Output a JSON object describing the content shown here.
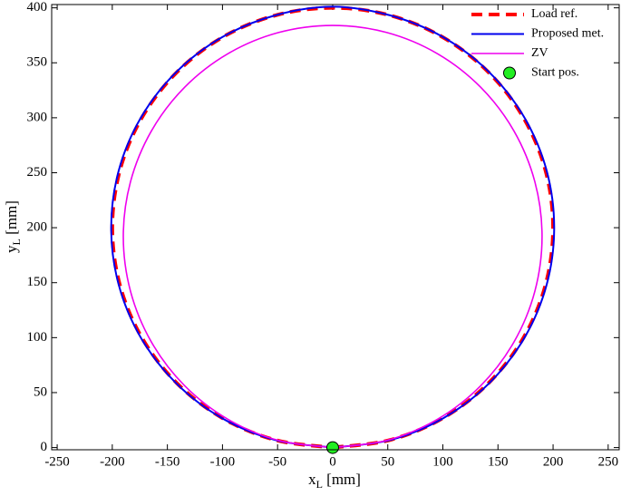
{
  "chart_data": {
    "type": "line",
    "x_label": {
      "base": "x",
      "subscript": "L",
      "unit": " [mm]"
    },
    "y_label": {
      "base": "y",
      "subscript": "L",
      "unit": " [mm]"
    },
    "xlim": [
      -255,
      260
    ],
    "ylim": [
      -2,
      403
    ],
    "xticks": [
      -250,
      -200,
      -150,
      -100,
      -50,
      0,
      50,
      100,
      150,
      200,
      250
    ],
    "yticks": [
      0,
      50,
      100,
      150,
      200,
      250,
      300,
      350,
      400
    ],
    "grid": false,
    "legend": "upper right",
    "series": [
      {
        "name": "Load ref.",
        "color": "#ff0000",
        "line_style": "dashed",
        "line_width": 4,
        "x": [
          0,
          51.8,
          100,
          141.4,
          173.2,
          193.2,
          200,
          193.2,
          173.2,
          141.4,
          100,
          51.8,
          0,
          -51.8,
          -100,
          -141.4,
          -173.2,
          -193.2,
          -200,
          -193.2,
          -173.2,
          -141.4,
          -100,
          -51.8,
          0
        ],
        "values": [
          0,
          6.8,
          26.8,
          58.6,
          100,
          148.2,
          200,
          251.8,
          300,
          341.4,
          373.2,
          393.2,
          400,
          393.2,
          373.2,
          341.4,
          300,
          251.8,
          200,
          148.2,
          100,
          58.6,
          26.8,
          6.8,
          0
        ]
      },
      {
        "name": "Proposed met.",
        "color": "#0000ee",
        "line_style": "solid",
        "line_width": 2,
        "x": [
          0,
          52,
          100.5,
          142.1,
          174.1,
          194.2,
          201,
          194.2,
          174.1,
          142.1,
          100.5,
          52,
          0,
          -52,
          -100.5,
          -142.1,
          -174.1,
          -194.2,
          -201,
          -194.2,
          -174.1,
          -142.1,
          -100.5,
          -52,
          0
        ],
        "values": [
          0,
          6.8,
          26.8,
          58.6,
          100,
          148.2,
          200,
          251.8,
          300,
          341.4,
          373.2,
          393.2,
          401,
          393.2,
          373.2,
          341.4,
          300,
          251.8,
          200,
          148.2,
          100,
          58.6,
          26.8,
          6.8,
          0
        ]
      },
      {
        "name": "ZV",
        "color": "#ee00ee",
        "line_style": "solid",
        "line_width": 1.6,
        "x": [
          0,
          49.2,
          95,
          134.3,
          164.5,
          183.5,
          190,
          183.5,
          164.5,
          134.3,
          95,
          49.2,
          0,
          -49.2,
          -95,
          -134.3,
          -164.5,
          -183.5,
          -190,
          -183.5,
          -164.5,
          -134.3,
          -95,
          -49.2,
          0
        ],
        "values": [
          0,
          6.5,
          25.7,
          56.2,
          96,
          142.3,
          192,
          241.7,
          288,
          327.8,
          358.3,
          377.5,
          384,
          377.5,
          358.3,
          327.8,
          288,
          241.7,
          192,
          142.3,
          96,
          56.2,
          25.7,
          6.5,
          0
        ]
      },
      {
        "name": "Start pos.",
        "color": "#22ee22",
        "type": "scatter",
        "x": [
          0
        ],
        "values": [
          0
        ]
      }
    ]
  }
}
